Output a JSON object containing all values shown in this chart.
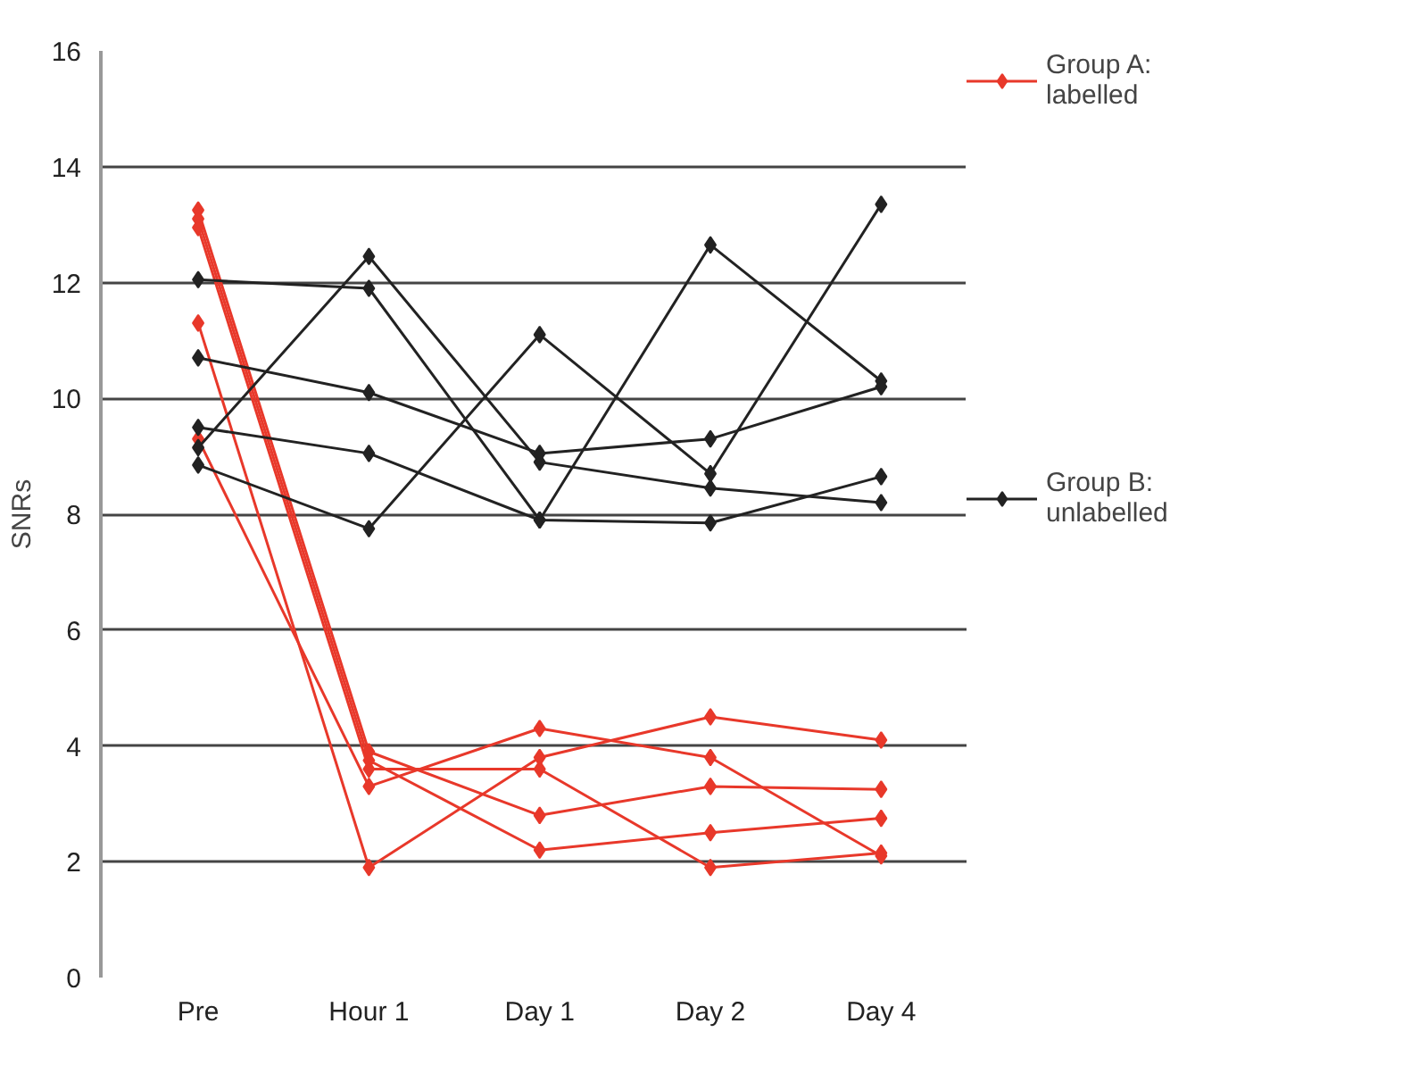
{
  "chart_data": {
    "type": "line",
    "ylabel": "SNRs",
    "categories": [
      "Pre",
      "Hour 1",
      "Day 1",
      "Day 2",
      "Day 4"
    ],
    "ylim": [
      0,
      16
    ],
    "yticks": [
      0,
      2,
      4,
      6,
      8,
      10,
      12,
      14,
      16
    ],
    "grid": "y",
    "legend": "right",
    "marker": "diamond",
    "line_style": "solid",
    "series": [
      {
        "name": "Group A: labelled",
        "color": "#e8382a",
        "values": [
          13.25,
          3.9,
          2.8,
          3.3,
          3.25
        ]
      },
      {
        "color": "#e8382a",
        "values": [
          13.1,
          3.75,
          2.2,
          2.5,
          2.75
        ]
      },
      {
        "color": "#e8382a",
        "values": [
          12.95,
          3.6,
          3.6,
          1.9,
          2.15
        ]
      },
      {
        "color": "#e8382a",
        "values": [
          9.3,
          3.3,
          4.3,
          3.8,
          2.1
        ]
      },
      {
        "color": "#e8382a",
        "values": [
          11.3,
          1.9,
          3.8,
          4.5,
          4.1
        ]
      },
      {
        "name": "Group B: unlabelled",
        "color": "#222222",
        "values": [
          9.15,
          12.45,
          8.9,
          8.45,
          8.2
        ]
      },
      {
        "color": "#222222",
        "values": [
          12.05,
          11.9,
          7.9,
          12.65,
          10.3
        ]
      },
      {
        "color": "#222222",
        "values": [
          10.7,
          10.1,
          9.05,
          9.3,
          10.2
        ]
      },
      {
        "color": "#222222",
        "values": [
          9.5,
          9.05,
          7.9,
          7.85,
          8.65
        ]
      },
      {
        "color": "#222222",
        "values": [
          8.85,
          7.75,
          11.1,
          8.7,
          13.35
        ]
      }
    ]
  }
}
